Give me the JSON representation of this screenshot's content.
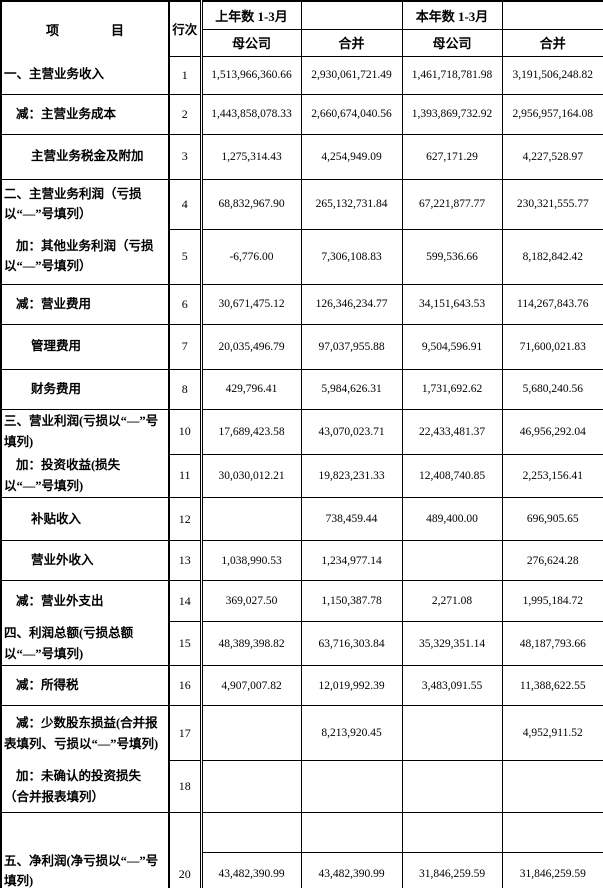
{
  "table": {
    "header": {
      "item": "项　　　　目",
      "line_no": "行次",
      "prev_period": "上年数 1-3月",
      "curr_period": "本年数 1-3月",
      "sub_columns": [
        "母公司",
        "合并",
        "母公司",
        "合并"
      ]
    },
    "rows": [
      {
        "label": "一、主营业务收入",
        "line": "1",
        "indent": 0,
        "values": [
          "1,513,966,360.66",
          "2,930,061,721.49",
          "1,461,718,781.98",
          "3,191,506,248.82"
        ]
      },
      {
        "label": "减：主营业务成本",
        "line": "2",
        "indent": 1,
        "values": [
          "1,443,858,078.33",
          "2,660,674,040.56",
          "1,393,869,732.92",
          "2,956,957,164.08"
        ]
      },
      {
        "label": "主营业务税金及附加",
        "line": "3",
        "indent": 2,
        "values": [
          "1,275,314.43",
          "4,254,949.09",
          "627,171.29",
          "4,227,528.97"
        ]
      },
      {
        "label": "二、主营业务利润（亏损以“—”号填列）",
        "line": "4",
        "indent": 0,
        "open_below": true,
        "values": [
          "68,832,967.90",
          "265,132,731.84",
          "67,221,877.77",
          "230,321,555.77"
        ]
      },
      {
        "label": "加：其他业务利润（亏损以“—”号填列）",
        "line": "5",
        "indent": 1,
        "values": [
          "-6,776.00",
          "7,306,108.83",
          "599,536.66",
          "8,182,842.42"
        ]
      },
      {
        "label": "减：营业费用",
        "line": "6",
        "indent": 1,
        "values": [
          "30,671,475.12",
          "126,346,234.77",
          "34,151,643.53",
          "114,267,843.76"
        ]
      },
      {
        "label": "管理费用",
        "line": "7",
        "indent": 2,
        "values": [
          "20,035,496.79",
          "97,037,955.88",
          "9,504,596.91",
          "71,600,021.83"
        ]
      },
      {
        "label": "财务费用",
        "line": "8",
        "indent": 2,
        "values": [
          "429,796.41",
          "5,984,626.31",
          "1,731,692.62",
          "5,680,240.56"
        ]
      },
      {
        "label": "三、营业利润(亏损以“—”号填列)",
        "line": "10",
        "indent": 0,
        "open_below": true,
        "values": [
          "17,689,423.58",
          "43,070,023.71",
          "22,433,481.37",
          "46,956,292.04"
        ]
      },
      {
        "label": "加：投资收益(损失以“—”号填列)",
        "line": "11",
        "indent": 1,
        "values": [
          "30,030,012.21",
          "19,823,231.33",
          "12,408,740.85",
          "2,253,156.41"
        ]
      },
      {
        "label": "补贴收入",
        "line": "12",
        "indent": 2,
        "values": [
          "",
          "738,459.44",
          "489,400.00",
          "696,905.65"
        ]
      },
      {
        "label": "营业外收入",
        "line": "13",
        "indent": 2,
        "values": [
          "1,038,990.53",
          "1,234,977.14",
          "",
          "276,624.28"
        ]
      },
      {
        "label": "减：营业外支出",
        "line": "14",
        "indent": 1,
        "open_below": true,
        "values": [
          "369,027.50",
          "1,150,387.78",
          "2,271.08",
          "1,995,184.72"
        ]
      },
      {
        "label": "四、利润总额(亏损总额以“—”号填列)",
        "line": "15",
        "indent": 0,
        "values": [
          "48,389,398.82",
          "63,716,303.84",
          "35,329,351.14",
          "48,187,793.66"
        ]
      },
      {
        "label": "减：所得税",
        "line": "16",
        "indent": 1,
        "values": [
          "4,907,007.82",
          "12,019,992.39",
          "3,483,091.55",
          "11,388,622.55"
        ]
      },
      {
        "label": "减：少数股东损益(合并报表填列、亏损以“—”号填列)",
        "line": "17",
        "indent": 1,
        "open_below": true,
        "values": [
          "",
          "8,213,920.45",
          "",
          "4,952,911.52"
        ]
      },
      {
        "label": "加：未确认的投资损失（合并报表填列）",
        "line": "18",
        "indent": 1,
        "values": [
          "",
          "",
          "",
          ""
        ]
      },
      {
        "label": "五、净利润(净亏损以“—”号填列)",
        "line": "20",
        "indent": 0,
        "split": true,
        "values": [
          "43,482,390.99",
          "43,482,390.99",
          "31,846,259.59",
          "31,846,259.59"
        ]
      }
    ]
  }
}
